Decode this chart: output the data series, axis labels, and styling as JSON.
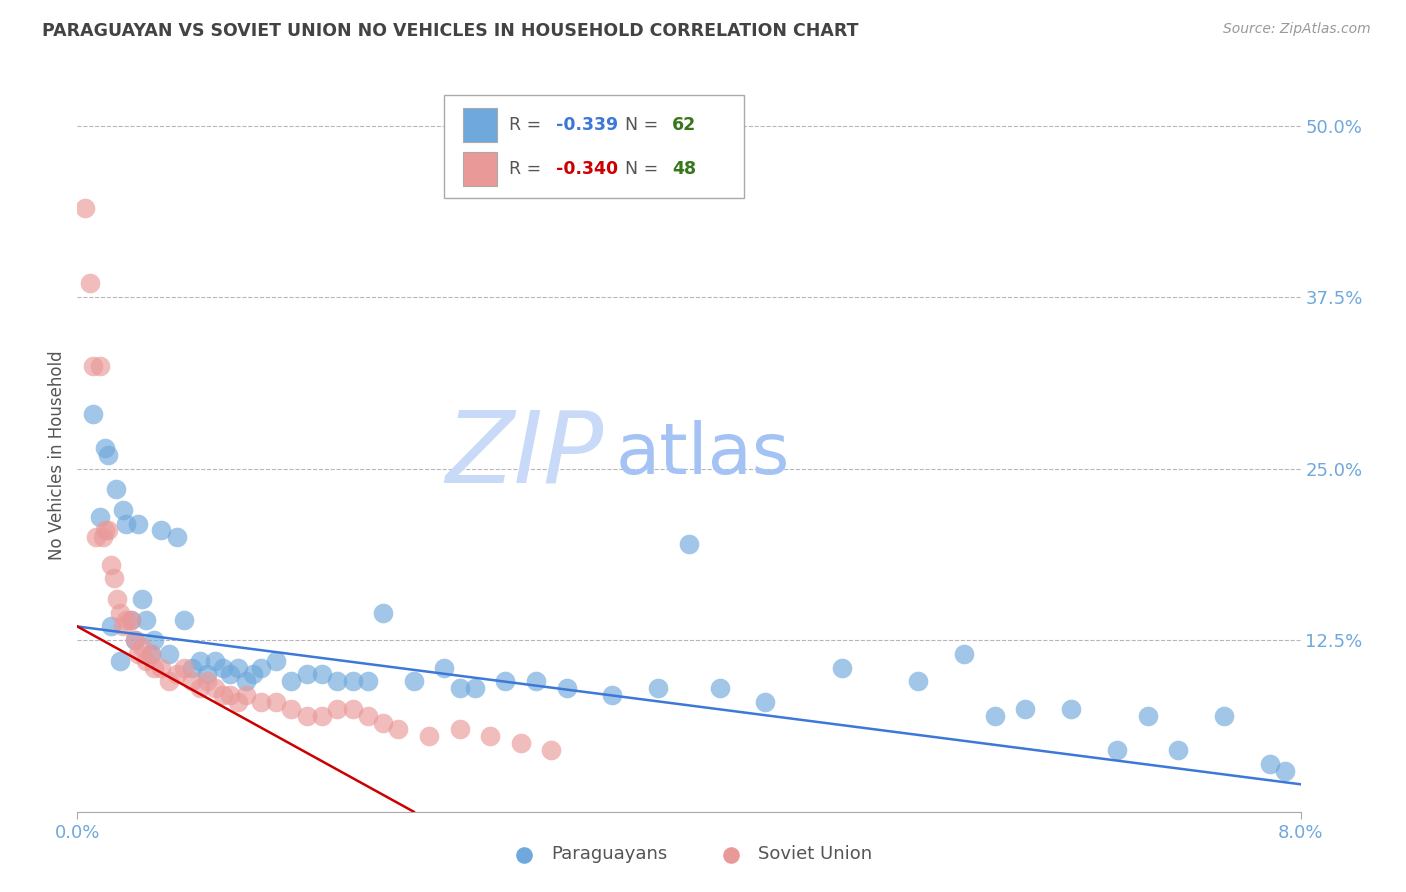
{
  "title": "PARAGUAYAN VS SOVIET UNION NO VEHICLES IN HOUSEHOLD CORRELATION CHART",
  "source": "Source: ZipAtlas.com",
  "ylabel": "No Vehicles in Household",
  "xlim": [
    0.0,
    8.0
  ],
  "ylim": [
    0.0,
    52.0
  ],
  "yticks": [
    0,
    12.5,
    25.0,
    37.5,
    50.0
  ],
  "ytick_labels": [
    "",
    "12.5%",
    "25.0%",
    "37.5%",
    "50.0%"
  ],
  "blue_r": "-0.339",
  "blue_n": "62",
  "red_r": "-0.340",
  "red_n": "48",
  "blue_color": "#6fa8dc",
  "red_color": "#ea9999",
  "blue_line_color": "#3c78d8",
  "red_line_color": "#cc0000",
  "title_color": "#434343",
  "source_color": "#999999",
  "tick_color": "#6fa8dc",
  "grid_color": "#b7b7b7",
  "watermark_zip_color": "#c9daf8",
  "watermark_atlas_color": "#a4c2f4",
  "blue_scatter_x": [
    0.1,
    0.15,
    0.18,
    0.2,
    0.22,
    0.25,
    0.28,
    0.3,
    0.32,
    0.35,
    0.38,
    0.4,
    0.42,
    0.45,
    0.48,
    0.5,
    0.55,
    0.6,
    0.65,
    0.7,
    0.75,
    0.8,
    0.85,
    0.9,
    0.95,
    1.0,
    1.05,
    1.1,
    1.15,
    1.2,
    1.3,
    1.4,
    1.5,
    1.6,
    1.7,
    1.8,
    1.9,
    2.0,
    2.2,
    2.4,
    2.5,
    2.6,
    2.8,
    3.0,
    3.2,
    3.5,
    3.8,
    4.0,
    4.2,
    4.5,
    5.0,
    5.5,
    5.8,
    6.0,
    6.2,
    6.5,
    6.8,
    7.0,
    7.2,
    7.5,
    7.8,
    7.9
  ],
  "blue_scatter_y": [
    29.0,
    21.5,
    26.5,
    26.0,
    13.5,
    23.5,
    11.0,
    22.0,
    21.0,
    14.0,
    12.5,
    21.0,
    15.5,
    14.0,
    11.5,
    12.5,
    20.5,
    11.5,
    20.0,
    14.0,
    10.5,
    11.0,
    10.0,
    11.0,
    10.5,
    10.0,
    10.5,
    9.5,
    10.0,
    10.5,
    11.0,
    9.5,
    10.0,
    10.0,
    9.5,
    9.5,
    9.5,
    14.5,
    9.5,
    10.5,
    9.0,
    9.0,
    9.5,
    9.5,
    9.0,
    8.5,
    9.0,
    19.5,
    9.0,
    8.0,
    10.5,
    9.5,
    11.5,
    7.0,
    7.5,
    7.5,
    4.5,
    7.0,
    4.5,
    7.0,
    3.5,
    3.0
  ],
  "red_scatter_x": [
    0.05,
    0.08,
    0.1,
    0.12,
    0.15,
    0.17,
    0.18,
    0.2,
    0.22,
    0.24,
    0.26,
    0.28,
    0.3,
    0.32,
    0.35,
    0.38,
    0.4,
    0.42,
    0.45,
    0.48,
    0.5,
    0.55,
    0.6,
    0.65,
    0.7,
    0.75,
    0.8,
    0.85,
    0.9,
    0.95,
    1.0,
    1.05,
    1.1,
    1.2,
    1.3,
    1.4,
    1.5,
    1.6,
    1.7,
    1.8,
    1.9,
    2.0,
    2.1,
    2.3,
    2.5,
    2.7,
    2.9,
    3.1
  ],
  "red_scatter_y": [
    44.0,
    38.5,
    32.5,
    20.0,
    32.5,
    20.0,
    20.5,
    20.5,
    18.0,
    17.0,
    15.5,
    14.5,
    13.5,
    14.0,
    14.0,
    12.5,
    11.5,
    12.0,
    11.0,
    11.5,
    10.5,
    10.5,
    9.5,
    10.0,
    10.5,
    9.5,
    9.0,
    9.5,
    9.0,
    8.5,
    8.5,
    8.0,
    8.5,
    8.0,
    8.0,
    7.5,
    7.0,
    7.0,
    7.5,
    7.5,
    7.0,
    6.5,
    6.0,
    5.5,
    6.0,
    5.5,
    5.0,
    4.5
  ],
  "blue_line_x0": 0.0,
  "blue_line_y0": 13.5,
  "blue_line_x1": 8.0,
  "blue_line_y1": 2.0,
  "red_line_x0": 0.0,
  "red_line_y0": 13.5,
  "red_line_x1": 2.2,
  "red_line_y1": 0.0
}
